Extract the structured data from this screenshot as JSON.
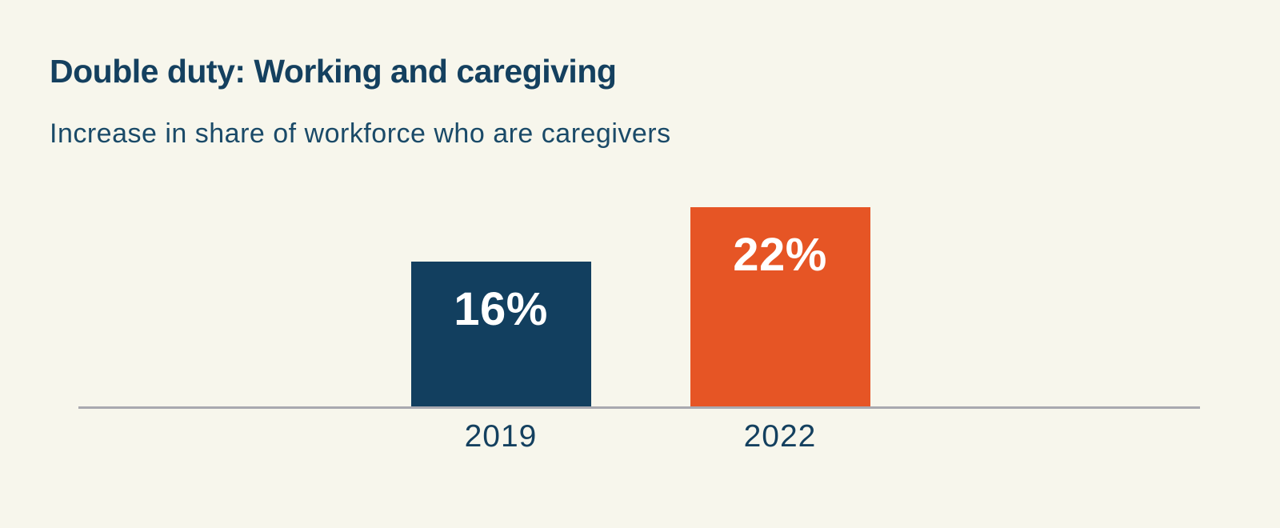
{
  "figure": {
    "title": "Double duty: Working and caregiving",
    "subtitle": "Increase in share of workforce who are caregivers"
  },
  "chart_data": {
    "type": "bar",
    "title": "Double duty: Working and caregiving",
    "subtitle": "Increase in share of workforce who are caregivers",
    "categories": [
      "2019",
      "2022"
    ],
    "values": [
      16,
      22
    ],
    "value_labels": [
      "16%",
      "22%"
    ],
    "xlabel": "",
    "ylabel": "",
    "ylim": [
      0,
      25
    ],
    "grid": false,
    "legend": false,
    "bar_colors": [
      "#123F5F",
      "#E65525"
    ],
    "value_label_color": "#FFFFFF",
    "background_color": "#F7F6EC",
    "axis_line_color": "#A9A9B0",
    "text_color": "#14405F"
  }
}
